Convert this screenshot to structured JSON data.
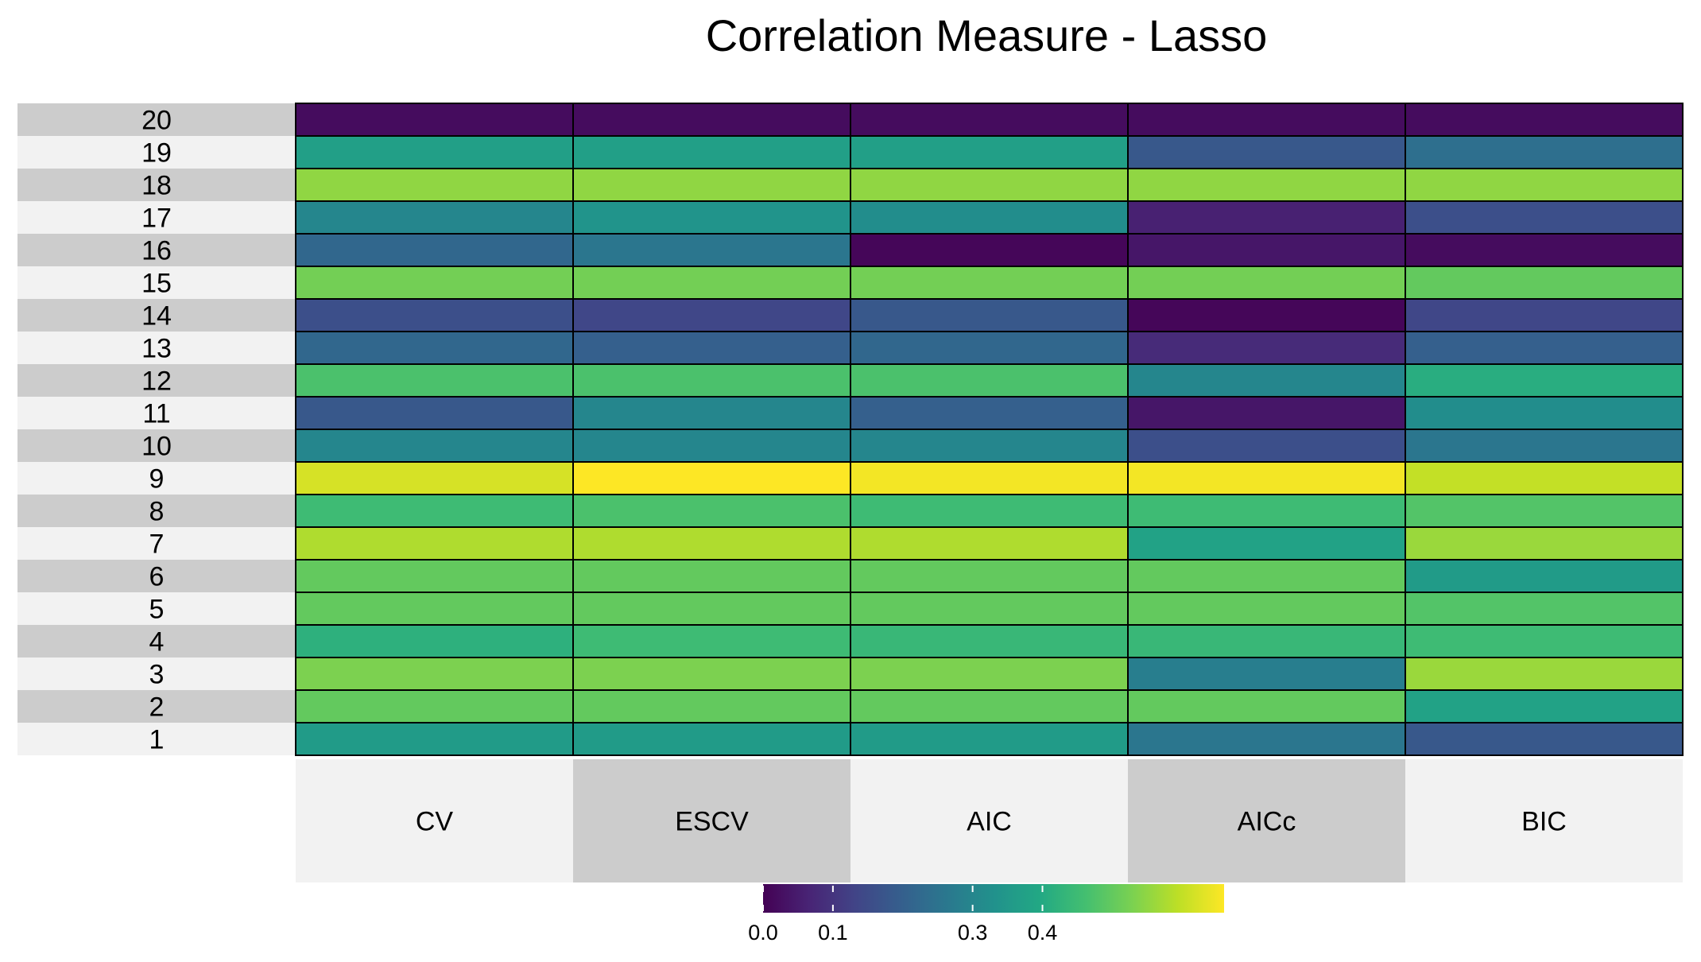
{
  "chart_data": {
    "type": "heatmap",
    "title": "Correlation Measure - Lasso",
    "xlabel": "",
    "ylabel": "",
    "columns": [
      "CV",
      "ESCV",
      "AIC",
      "AICc",
      "BIC"
    ],
    "rows": [
      "20",
      "19",
      "18",
      "17",
      "16",
      "15",
      "14",
      "13",
      "12",
      "11",
      "10",
      "9",
      "8",
      "7",
      "6",
      "5",
      "4",
      "3",
      "2",
      "1"
    ],
    "values": [
      [
        0.02,
        0.02,
        0.02,
        0.02,
        0.02
      ],
      [
        0.37,
        0.37,
        0.37,
        0.18,
        0.24
      ],
      [
        0.55,
        0.55,
        0.55,
        0.55,
        0.55
      ],
      [
        0.3,
        0.34,
        0.32,
        0.06,
        0.16
      ],
      [
        0.22,
        0.26,
        0.01,
        0.04,
        0.02
      ],
      [
        0.52,
        0.52,
        0.52,
        0.52,
        0.5
      ],
      [
        0.16,
        0.14,
        0.18,
        0.01,
        0.14
      ],
      [
        0.22,
        0.2,
        0.22,
        0.08,
        0.2
      ],
      [
        0.47,
        0.47,
        0.47,
        0.3,
        0.41
      ],
      [
        0.18,
        0.3,
        0.2,
        0.04,
        0.32
      ],
      [
        0.3,
        0.3,
        0.3,
        0.16,
        0.26
      ],
      [
        0.62,
        0.66,
        0.65,
        0.65,
        0.6
      ],
      [
        0.45,
        0.47,
        0.45,
        0.45,
        0.48
      ],
      [
        0.58,
        0.58,
        0.58,
        0.38,
        0.56
      ],
      [
        0.5,
        0.5,
        0.5,
        0.5,
        0.36
      ],
      [
        0.5,
        0.5,
        0.5,
        0.5,
        0.48
      ],
      [
        0.42,
        0.45,
        0.44,
        0.44,
        0.45
      ],
      [
        0.53,
        0.53,
        0.53,
        0.28,
        0.56
      ],
      [
        0.5,
        0.5,
        0.5,
        0.5,
        0.38
      ],
      [
        0.36,
        0.36,
        0.36,
        0.26,
        0.18
      ]
    ],
    "colorscale": "viridis",
    "color_range": [
      0.0,
      0.66
    ],
    "colorbar_ticks": [
      "0.0",
      "0.1",
      "0.3",
      "0.4"
    ],
    "colorbar_tick_values": [
      0.0,
      0.1,
      0.3,
      0.4
    ],
    "legend_position": "bottom"
  }
}
